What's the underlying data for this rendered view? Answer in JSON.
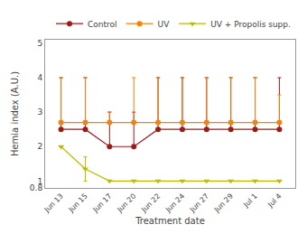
{
  "chart_data": {
    "type": "line",
    "xlabel": "Treatment date",
    "ylabel": "Hemia index (A.U.)",
    "categories": [
      "Jun 13",
      "Jun 15",
      "Jun 17",
      "Jun 20",
      "Jun 22",
      "Jun 24",
      "Jun 27",
      "Jun 29",
      "Jul 1",
      "Jul 4"
    ],
    "series": [
      {
        "name": "Control",
        "color": "#9B1B1B",
        "marker": "circle",
        "values": [
          2.5,
          2.5,
          2.0,
          2.0,
          2.5,
          2.5,
          2.5,
          2.5,
          2.5,
          2.5
        ],
        "yerr_lo": [
          0.0,
          0.0,
          0.0,
          0.0,
          0.0,
          0.0,
          0.0,
          0.0,
          0.0,
          0.0
        ],
        "yerr_hi": [
          1.5,
          1.5,
          1.0,
          1.0,
          1.5,
          1.5,
          1.5,
          1.5,
          1.5,
          1.5
        ]
      },
      {
        "name": "UV",
        "color": "#F5820A",
        "marker": "circle",
        "values": [
          2.7,
          2.7,
          2.7,
          2.7,
          2.7,
          2.7,
          2.7,
          2.7,
          2.7,
          2.7
        ],
        "yerr_lo": [
          0.0,
          0.0,
          0.0,
          0.0,
          0.0,
          0.0,
          0.0,
          0.0,
          0.0,
          0.0
        ],
        "yerr_hi": [
          1.3,
          1.3,
          0.3,
          1.3,
          1.3,
          1.3,
          1.3,
          1.3,
          1.3,
          0.8
        ]
      },
      {
        "name": "UV + Propolis supp.",
        "color": "#BBBB00",
        "marker": "triangle-down",
        "values": [
          2.0,
          1.35,
          1.0,
          1.0,
          1.0,
          1.0,
          1.0,
          1.0,
          1.0,
          1.0
        ],
        "yerr_lo": [
          0.0,
          0.35,
          0.0,
          0.0,
          0.0,
          0.0,
          0.0,
          0.0,
          0.0,
          0.0
        ],
        "yerr_hi": [
          0.0,
          0.35,
          0.0,
          0.0,
          0.0,
          0.0,
          0.0,
          0.0,
          0.0,
          0.0
        ]
      }
    ],
    "ylim": [
      0.8,
      5.1
    ],
    "yticks": [
      0.8,
      1,
      2,
      3,
      4,
      5
    ],
    "grid": false,
    "legend": "top"
  }
}
